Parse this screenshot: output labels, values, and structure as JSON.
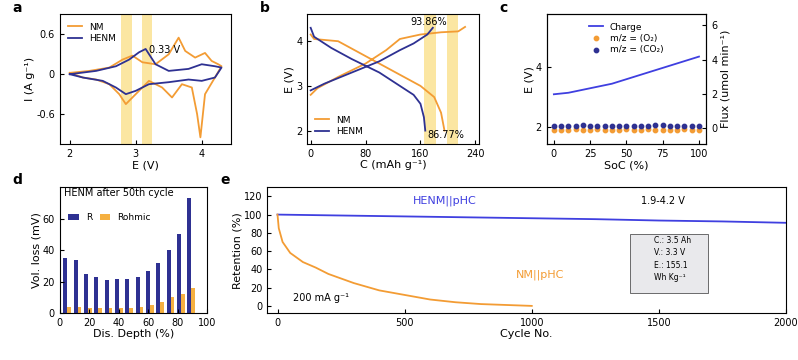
{
  "chart_data": [
    {
      "type": "line",
      "label": "a",
      "x_label": "E (V)",
      "y_label": "I (A g⁻¹)",
      "xlim": [
        1.85,
        4.45
      ],
      "xticks": [
        2,
        3,
        4
      ],
      "ylim": [
        -1.05,
        0.9
      ],
      "yticks": [
        -0.6,
        0,
        0.6
      ],
      "legend": "upper left",
      "spans": [
        [
          2.78,
          2.95
        ],
        [
          3.1,
          3.25
        ]
      ],
      "annotations": [
        "0.33 V"
      ],
      "series": [
        {
          "name": "NM",
          "color": "#f39c34",
          "line_style": "solid",
          "x": [
            2.0,
            2.3,
            2.6,
            2.8,
            2.95,
            3.1,
            3.3,
            3.5,
            3.65,
            3.75,
            3.9,
            4.05,
            4.15,
            4.25,
            4.3,
            4.2,
            4.05,
            3.98,
            3.93,
            3.85,
            3.7,
            3.55,
            3.4,
            3.2,
            3.0,
            2.85,
            2.75,
            2.6,
            2.4,
            2.2,
            2.0
          ],
          "values": [
            0.02,
            0.05,
            0.1,
            0.22,
            0.28,
            0.18,
            0.15,
            0.3,
            0.55,
            0.35,
            0.25,
            0.32,
            0.2,
            0.15,
            0.12,
            -0.05,
            -0.3,
            -0.95,
            -0.6,
            -0.2,
            -0.15,
            -0.35,
            -0.2,
            -0.1,
            -0.3,
            -0.45,
            -0.3,
            -0.15,
            -0.08,
            -0.05,
            0.02
          ]
        },
        {
          "name": "HENM",
          "color": "#2e3192",
          "line_style": "solid",
          "x": [
            2.0,
            2.4,
            2.7,
            2.9,
            3.05,
            3.15,
            3.3,
            3.5,
            3.8,
            4.0,
            4.2,
            4.3,
            4.2,
            4.0,
            3.8,
            3.5,
            3.2,
            3.0,
            2.85,
            2.7,
            2.5,
            2.2,
            2.0
          ],
          "values": [
            0.0,
            0.05,
            0.12,
            0.22,
            0.33,
            0.38,
            0.15,
            0.05,
            0.08,
            0.15,
            0.12,
            0.1,
            -0.05,
            -0.1,
            -0.08,
            -0.12,
            -0.15,
            -0.25,
            -0.3,
            -0.2,
            -0.1,
            -0.05,
            0.0
          ]
        }
      ]
    },
    {
      "type": "line",
      "label": "b",
      "x_label": "C (mAh g⁻¹)",
      "y_label": "E (V)",
      "xlim": [
        -5,
        245
      ],
      "xticks": [
        0,
        80,
        160,
        240
      ],
      "ylim": [
        1.7,
        4.6
      ],
      "yticks": [
        2,
        3,
        4
      ],
      "legend": "lower left",
      "spans": [
        [
          165,
          182
        ],
        [
          198,
          214
        ]
      ],
      "annotations": [
        "93.86%",
        "86.77%"
      ],
      "series": [
        {
          "name": "NM",
          "color": "#f39c34",
          "line_style": "solid",
          "x": [
            0,
            10,
            40,
            80,
            110,
            130,
            160,
            190,
            215,
            225,
            null,
            0,
            5,
            40,
            70,
            100,
            130,
            160,
            180,
            190,
            195
          ],
          "values": [
            2.8,
            2.95,
            3.2,
            3.5,
            3.8,
            4.05,
            4.15,
            4.2,
            4.22,
            4.32,
            null,
            4.15,
            4.05,
            4.0,
            3.75,
            3.5,
            3.25,
            3.0,
            2.75,
            2.4,
            2.0
          ]
        },
        {
          "name": "HENM",
          "color": "#2e3192",
          "line_style": "solid",
          "x": [
            0,
            20,
            60,
            100,
            130,
            150,
            170,
            178,
            null,
            0,
            5,
            30,
            60,
            100,
            130,
            150,
            160,
            165,
            167
          ],
          "values": [
            2.9,
            3.05,
            3.3,
            3.55,
            3.8,
            3.95,
            4.15,
            4.3,
            null,
            4.3,
            4.1,
            3.85,
            3.6,
            3.3,
            3.0,
            2.8,
            2.6,
            2.3,
            2.0
          ]
        }
      ]
    },
    {
      "type": "line",
      "label": "c",
      "x_label": "SoC (%)",
      "y_label": "E (V)",
      "y2_label": "Flux (umol min⁻¹)",
      "xlim": [
        -5,
        105
      ],
      "xticks": [
        0,
        25,
        50,
        75,
        100
      ],
      "ylim": [
        1.45,
        5.75
      ],
      "yticks": [
        2,
        4
      ],
      "y2lim": [
        -0.95,
        6.65
      ],
      "y2ticks": [
        0,
        2,
        4,
        6
      ],
      "legend": "upper center",
      "series": [
        {
          "name": "Charge",
          "color": "#3f3fe0",
          "type": "line",
          "line_style": "solid",
          "x": [
            0,
            10,
            20,
            30,
            40,
            50,
            60,
            70,
            80,
            90,
            100
          ],
          "values": [
            3.1,
            3.15,
            3.25,
            3.35,
            3.45,
            3.6,
            3.75,
            3.9,
            4.05,
            4.2,
            4.35
          ]
        },
        {
          "name": "m/z = (O₂)",
          "color": "#f39c34",
          "type": "scatter",
          "marker": "o",
          "axis": "y2",
          "x": [
            0,
            5,
            10,
            15,
            20,
            25,
            30,
            35,
            40,
            45,
            50,
            55,
            60,
            65,
            70,
            75,
            80,
            85,
            90,
            95,
            100
          ],
          "values": [
            -0.15,
            -0.1,
            -0.12,
            -0.08,
            -0.1,
            -0.14,
            -0.09,
            -0.11,
            -0.1,
            -0.13,
            -0.08,
            -0.1,
            -0.12,
            -0.09,
            -0.11,
            -0.1,
            -0.12,
            -0.1,
            -0.09,
            -0.11,
            -0.1
          ]
        },
        {
          "name": "m/z = (CO₂)",
          "color": "#2e3192",
          "type": "scatter",
          "marker": "o",
          "axis": "y2",
          "x": [
            0,
            5,
            10,
            15,
            20,
            25,
            30,
            35,
            40,
            45,
            50,
            55,
            60,
            65,
            70,
            75,
            80,
            85,
            90,
            95,
            100
          ],
          "values": [
            0.1,
            0.12,
            0.08,
            0.1,
            0.15,
            0.1,
            0.09,
            0.12,
            0.1,
            0.11,
            0.13,
            0.1,
            0.12,
            0.1,
            0.15,
            0.18,
            0.1,
            0.12,
            0.1,
            0.11,
            0.1
          ]
        }
      ]
    },
    {
      "type": "bar",
      "label": "d",
      "x_label": "Dis. Depth (%)",
      "y_label": "Vol. loss (mV)",
      "xlim": [
        0,
        100
      ],
      "xticks": [
        0,
        20,
        40,
        60,
        80,
        100
      ],
      "ylim": [
        0,
        80
      ],
      "yticks": [
        0,
        20,
        40,
        60
      ],
      "legend": "upper left",
      "annotations": [
        "HENM after 50th cycle"
      ],
      "x": [
        5,
        12,
        19,
        26,
        33,
        40,
        47,
        54,
        61,
        68,
        75,
        82,
        89
      ],
      "series": [
        {
          "name": "R",
          "color": "#2e3192",
          "values": [
            35,
            34,
            25,
            23,
            21,
            22,
            22,
            23,
            27,
            32,
            40,
            50,
            73
          ]
        },
        {
          "name": "Rohmic",
          "color": "#f5b041",
          "values": [
            4,
            4,
            3,
            3,
            3,
            3,
            3,
            4,
            5,
            7,
            10,
            12,
            16
          ]
        }
      ]
    },
    {
      "type": "line",
      "label": "e",
      "x_label": "Cycle No.",
      "y_label": "Retention (%)",
      "xlim": [
        -40,
        2000
      ],
      "xticks": [
        0,
        500,
        1000,
        1500,
        2000
      ],
      "ylim": [
        -8,
        130
      ],
      "yticks": [
        0,
        20,
        40,
        60,
        80,
        100,
        120
      ],
      "annotations": [
        "1.9-4.2 V",
        "200 mA g⁻¹"
      ],
      "inset": [
        "C.: 3.5 Ah",
        "V.: 3.3 V",
        "E.: 155.1",
        "Wh Kg⁻¹"
      ],
      "series": [
        {
          "name": "HENM||pHC",
          "color": "#3f3fe0",
          "line_style": "solid",
          "x": [
            0,
            250,
            500,
            750,
            1000,
            1250,
            1500,
            1750,
            2000
          ],
          "values": [
            100,
            99,
            98,
            97,
            96,
            95,
            93.5,
            92.5,
            91
          ]
        },
        {
          "name": "NM||pHC",
          "color": "#f39c34",
          "line_style": "solid",
          "x": [
            0,
            5,
            20,
            50,
            100,
            150,
            200,
            250,
            300,
            400,
            500,
            600,
            700,
            800,
            900,
            1000
          ],
          "values": [
            100,
            85,
            70,
            58,
            48,
            42,
            35,
            30,
            25,
            17,
            12,
            7,
            4,
            2,
            1,
            0
          ]
        }
      ]
    }
  ]
}
